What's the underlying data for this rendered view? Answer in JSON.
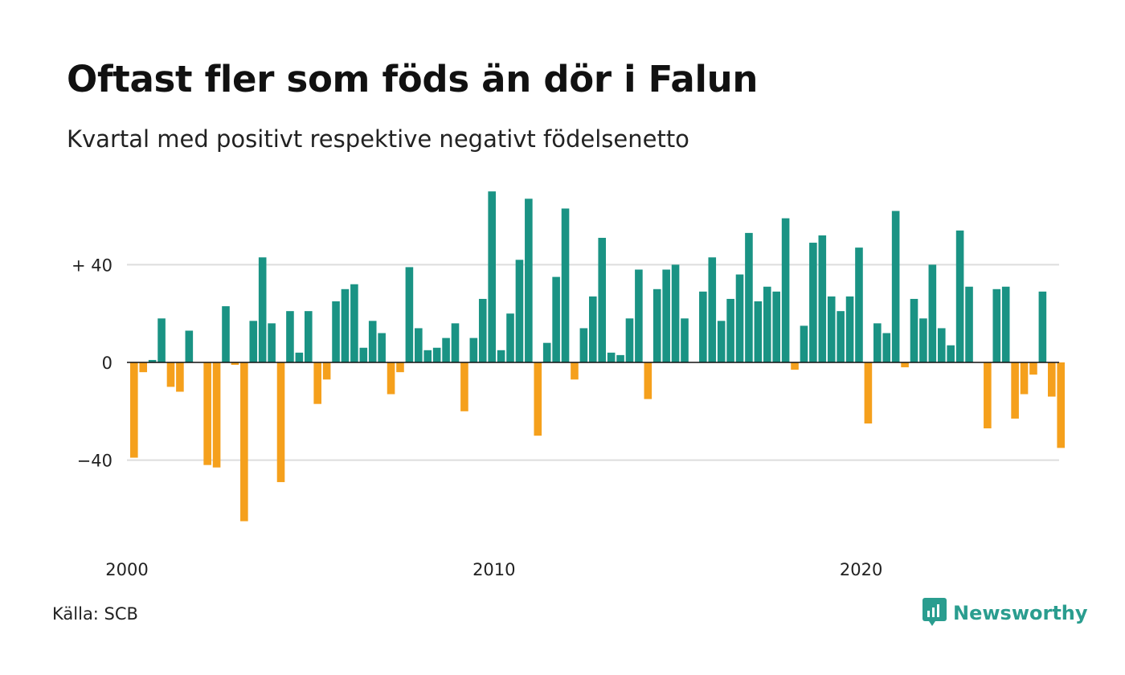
{
  "header": {
    "title": "Oftast fler som föds än dör i Falun",
    "subtitle": "Kvartal med positivt respektive negativt födelsenetto"
  },
  "footer": {
    "source": "Källa: SCB",
    "brand": "Newsworthy",
    "brand_color": "#2a9d8f"
  },
  "chart_data": {
    "type": "bar",
    "title": "Oftast fler som föds än dör i Falun",
    "subtitle": "Kvartal med positivt respektive negativt födelsenetto",
    "xlabel": "",
    "ylabel": "",
    "x_unit": "quarter",
    "x_start": "2000",
    "y_ticks": [
      40,
      0,
      -40
    ],
    "y_tick_labels": [
      "+ 40",
      "0",
      "−40"
    ],
    "x_ticks": [
      "2000",
      "2010",
      "2020"
    ],
    "ylim": [
      -75,
      75
    ],
    "grid": true,
    "legend": "none",
    "colors": {
      "positive": "#1a9384",
      "negative": "#f5a01c",
      "grid": "#dddddd",
      "baseline": "#111111"
    },
    "values": [
      -39,
      -4,
      1,
      18,
      -10,
      -12,
      13,
      0,
      -42,
      -43,
      23,
      -1,
      -65,
      17,
      43,
      16,
      -49,
      21,
      4,
      21,
      -17,
      -7,
      25,
      30,
      32,
      6,
      17,
      12,
      -13,
      -4,
      39,
      14,
      5,
      6,
      10,
      16,
      -20,
      10,
      26,
      70,
      5,
      20,
      42,
      67,
      -30,
      8,
      35,
      63,
      -7,
      14,
      27,
      51,
      4,
      3,
      18,
      38,
      -15,
      30,
      38,
      40,
      18,
      0,
      29,
      43,
      17,
      26,
      36,
      53,
      25,
      31,
      29,
      59,
      -3,
      15,
      49,
      52,
      27,
      21,
      27,
      47,
      -25,
      16,
      12,
      62,
      -2,
      26,
      18,
      40,
      14,
      7,
      54,
      31,
      0,
      -27,
      30,
      31,
      -23,
      -13,
      -5,
      29,
      -14,
      -35
    ]
  }
}
